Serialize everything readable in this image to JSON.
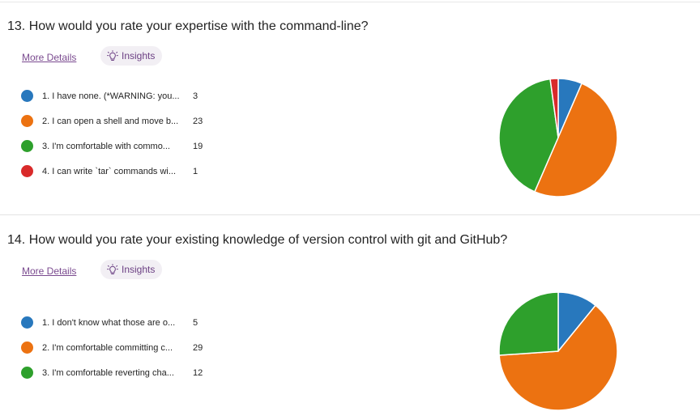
{
  "questions": [
    {
      "title": "13.  How would you rate your expertise with the command-line?",
      "more_details": "More Details",
      "insights": "Insights",
      "chart_data": {
        "type": "pie",
        "categories": [
          "1. I have none. (*WARNING: you...",
          "2. I can open a shell and move b...",
          "3. I'm comfortable with commo...",
          "4. I can write `tar` commands wi..."
        ],
        "values": [
          3,
          23,
          19,
          1
        ],
        "colors": [
          "#2878bd",
          "#ec7211",
          "#2ea02c",
          "#d92a2a"
        ],
        "start_angle_deg": 0,
        "direction": "clockwise"
      }
    },
    {
      "title": "14.  How would you rate your existing knowledge of version control with git and GitHub?",
      "more_details": "More Details",
      "insights": "Insights",
      "chart_data": {
        "type": "pie",
        "categories": [
          "1. I don't know what those are o...",
          "2. I'm comfortable committing c...",
          "3. I'm comfortable reverting cha..."
        ],
        "values": [
          5,
          29,
          12
        ],
        "colors": [
          "#2878bd",
          "#ec7211",
          "#2ea02c"
        ],
        "start_angle_deg": 0,
        "direction": "clockwise"
      }
    }
  ],
  "icons": {
    "insights": "lightbulb-icon"
  }
}
